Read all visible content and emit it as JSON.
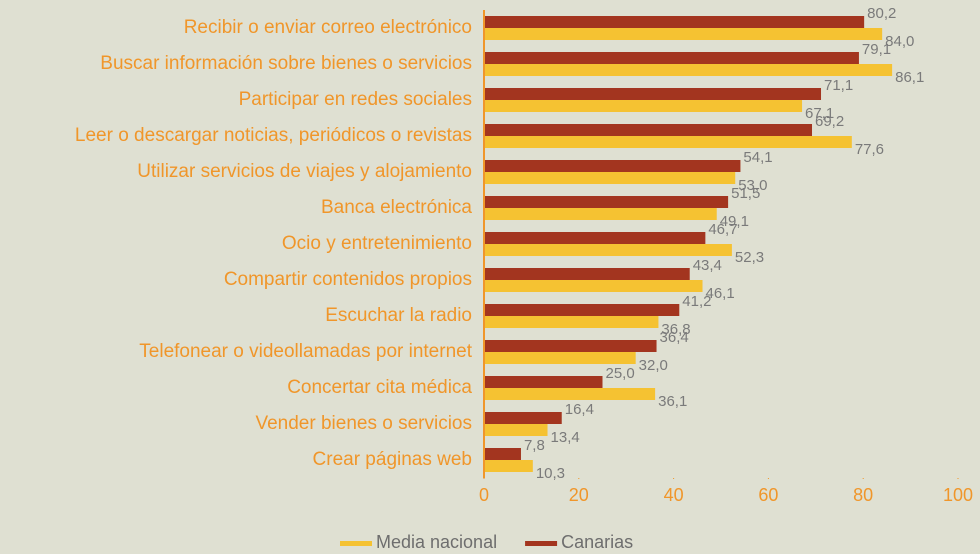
{
  "chart_data": {
    "type": "hbar",
    "categories": [
      "Recibir o enviar correo electrónico",
      "Buscar información sobre bienes o servicios",
      "Participar en redes sociales",
      "Leer o descargar noticias, periódicos o revistas",
      "Utilizar servicios de viajes y alojamiento",
      "Banca electrónica",
      "Ocio y entretenimiento",
      "Compartir contenidos propios",
      "Escuchar la radio",
      "Telefonear o videollamadas por internet",
      "Concertar cita médica",
      "Vender bienes o servicios",
      "Crear páginas web"
    ],
    "series": [
      {
        "name": "Media nacional",
        "color": "#f5c232",
        "values": [
          84.0,
          86.1,
          67.1,
          77.6,
          53.0,
          49.1,
          52.3,
          46.1,
          36.8,
          32.0,
          36.1,
          13.4,
          10.3
        ],
        "value_labels": [
          "84,0",
          "86,1",
          "67,1",
          "77,6",
          "53,0",
          "49,1",
          "52,3",
          "46,1",
          "36,8",
          "32,0",
          "36,1",
          "13,4",
          "10,3"
        ]
      },
      {
        "name": "Canarias",
        "color": "#a3351f",
        "values": [
          80.2,
          79.1,
          71.1,
          69.2,
          54.1,
          51.5,
          46.7,
          43.4,
          41.2,
          36.4,
          25.0,
          16.4,
          7.8
        ],
        "value_labels": [
          "80,2",
          "79,1",
          "71,1",
          "69,2",
          "54,1",
          "51,5",
          "46,7",
          "43,4",
          "41,2",
          "36,4",
          "25,0",
          "16,4",
          "7,8"
        ]
      }
    ],
    "xlim": [
      0,
      100
    ],
    "xticks": [
      0,
      20,
      40,
      60,
      80,
      100
    ],
    "axis_color": "#f0962a"
  }
}
